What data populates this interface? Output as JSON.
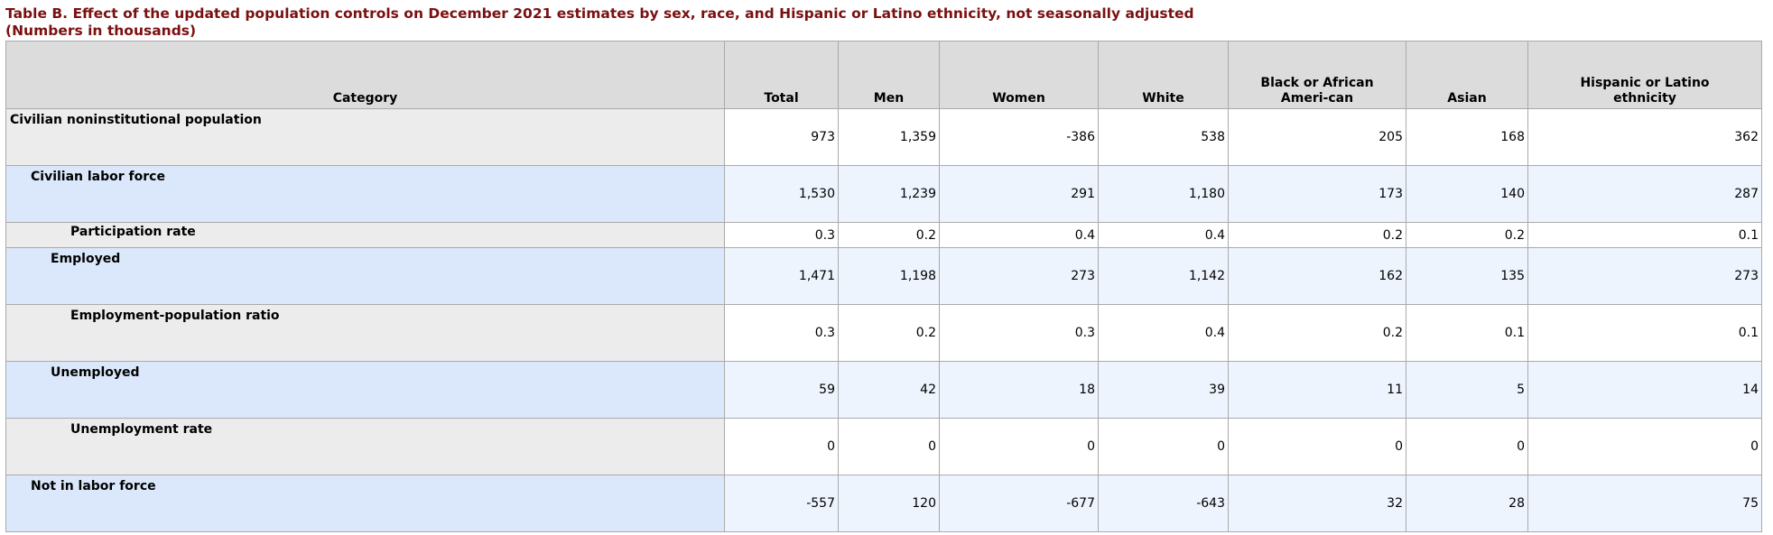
{
  "header": {
    "title": "Table B. Effect of the updated population controls on December 2021 estimates by sex, race, and Hispanic or Latino ethnicity, not seasonally adjusted",
    "subtitle": "(Numbers in thousands)"
  },
  "table": {
    "columns": [
      "Category",
      "Total",
      "Men",
      "Women",
      "White",
      "Black or African Ameri-can",
      "Asian",
      "Hispanic or Latino ethnicity"
    ],
    "rows": [
      [
        "Civilian noninstitutional population",
        "973",
        "1,359",
        "-386",
        "538",
        "205",
        "168",
        "362"
      ],
      [
        "Civilian labor force",
        "1,530",
        "1,239",
        "291",
        "1,180",
        "173",
        "140",
        "287"
      ],
      [
        "Participation rate",
        "0.3",
        "0.2",
        "0.4",
        "0.4",
        "0.2",
        "0.2",
        "0.1"
      ],
      [
        "Employed",
        "1,471",
        "1,198",
        "273",
        "1,142",
        "162",
        "135",
        "273"
      ],
      [
        "Employment-population ratio",
        "0.3",
        "0.2",
        "0.3",
        "0.4",
        "0.2",
        "0.1",
        "0.1"
      ],
      [
        "Unemployed",
        "59",
        "42",
        "18",
        "39",
        "11",
        "5",
        "14"
      ],
      [
        "Unemployment rate",
        "0",
        "0",
        "0",
        "0",
        "0",
        "0",
        "0"
      ],
      [
        "Not in labor force",
        "-557",
        "120",
        "-677",
        "-643",
        "32",
        "28",
        "75"
      ]
    ]
  }
}
